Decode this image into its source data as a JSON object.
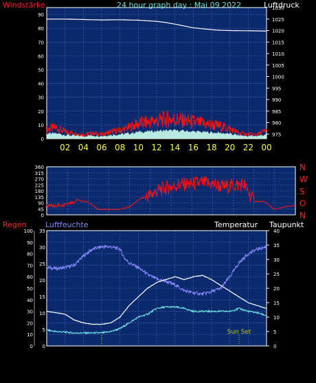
{
  "header": {
    "left_label": "Windstärke",
    "title": "24 hour graph day : Mai 09 2022",
    "right_label": "Luftdruck"
  },
  "panel3_labels": {
    "regen": "Regen",
    "luftfeuchte": "Luftfeuchte",
    "temperatur": "Temperatur",
    "taupunkt": "Taupunkt"
  },
  "colors": {
    "panel_bg": "#0b2a6e",
    "grid": "#4a6fc0",
    "pressure": "#ffffff",
    "wind": "#ff1010",
    "gust_fill": "#ccffee",
    "humidity": "#8a8aff",
    "temperature": "#ffffff",
    "dewpoint": "#70f0f0",
    "sun_marker": "#c8c800",
    "accent_red": "#ff2020"
  },
  "chart_data": [
    {
      "type": "line",
      "title": "24 hour graph day : Mai 09 2022",
      "ylabel": "Windstärke",
      "y2label": "Luftdruck",
      "xlabel": "",
      "x_ticks": [
        "02",
        "04",
        "06",
        "08",
        "10",
        "12",
        "14",
        "16",
        "18",
        "20",
        "22",
        "00"
      ],
      "ylim": [
        0,
        95
      ],
      "y_ticks": [
        0,
        10,
        20,
        30,
        40,
        50,
        60,
        70,
        80,
        90
      ],
      "y2lim": [
        973,
        1030
      ],
      "y2_ticks": [
        975,
        980,
        985,
        990,
        995,
        1000,
        1005,
        1010,
        1015,
        1020,
        1025,
        1030
      ],
      "grid": true,
      "series": [
        {
          "axis": "y2",
          "color": "#ffffff",
          "x": [
            0,
            2,
            4,
            6,
            8,
            10,
            12,
            13,
            14,
            15,
            16,
            17,
            18,
            19,
            20,
            22,
            24
          ],
          "values": [
            1025,
            1025,
            1024.8,
            1024.6,
            1024.7,
            1024.5,
            1024,
            1023.5,
            1022.8,
            1022,
            1021.2,
            1020.8,
            1020.4,
            1020.1,
            1020,
            1019.9,
            1019.8
          ]
        },
        {
          "axis": "y",
          "color": "#ff1010",
          "x": [
            0,
            1,
            2,
            3,
            4,
            5,
            6,
            7,
            8,
            9,
            10,
            11,
            12,
            13,
            14,
            15,
            16,
            17,
            18,
            19,
            20,
            21,
            22,
            23,
            24
          ],
          "values": [
            7,
            8,
            5,
            4,
            3,
            4,
            3,
            5,
            6,
            8,
            11,
            12,
            13,
            14,
            14,
            13,
            12,
            11,
            10,
            9,
            7,
            4,
            3,
            3,
            6
          ]
        }
      ]
    },
    {
      "type": "scatter",
      "ylabel": "",
      "ylim": [
        0,
        360
      ],
      "y_ticks": [
        0,
        45,
        90,
        135,
        180,
        225,
        270,
        315,
        360
      ],
      "right_labels": [
        "N",
        "W",
        "S",
        "O",
        "N"
      ],
      "grid": true,
      "series": [
        {
          "color": "#ff1010",
          "x": [
            0,
            0.5,
            1,
            1.5,
            2,
            2.5,
            3,
            4,
            5,
            6,
            7,
            8,
            8.5,
            9,
            10,
            11,
            12,
            13,
            14,
            15,
            16,
            17,
            18,
            19,
            20,
            21,
            22,
            23,
            24
          ],
          "values": [
            70,
            65,
            70,
            75,
            90,
            95,
            110,
            95,
            40,
            40,
            40,
            60,
            90,
            120,
            150,
            190,
            210,
            230,
            230,
            240,
            230,
            210,
            220,
            230,
            100,
            100,
            40,
            60,
            70
          ]
        }
      ]
    },
    {
      "type": "line",
      "ylabel": "Regen",
      "y2label": "Taupunkt",
      "series_labels": [
        "Luftfeuchte",
        "Temperatur"
      ],
      "ylim": [
        0,
        100
      ],
      "y_ticks": [
        0,
        10,
        20,
        30,
        40,
        50,
        60,
        70,
        80,
        90,
        100
      ],
      "mid_ticks": [
        0,
        5,
        10,
        15,
        20,
        25,
        30,
        35
      ],
      "y2lim": [
        0,
        40
      ],
      "y2_ticks": [
        0,
        5,
        10,
        15,
        20,
        25,
        30,
        35,
        40
      ],
      "annotation": "Sun Set",
      "grid": true,
      "series": [
        {
          "color": "#8a8aff",
          "x": [
            0,
            1,
            2,
            3,
            4,
            5,
            6,
            7,
            8,
            8.5,
            9,
            10,
            11,
            12,
            13,
            14,
            15,
            16,
            17,
            18,
            19,
            19.5,
            20,
            21,
            22,
            23,
            24
          ],
          "values": [
            68,
            67,
            68,
            70,
            78,
            84,
            86,
            86,
            84,
            76,
            72,
            68,
            62,
            58,
            56,
            53,
            48,
            46,
            45,
            47,
            50,
            55,
            60,
            72,
            80,
            84,
            86
          ]
        },
        {
          "color": "#ffffff",
          "x": [
            0,
            1,
            2,
            3,
            4,
            5,
            6,
            7,
            8,
            9,
            10,
            11,
            12,
            13,
            14,
            15,
            16,
            17,
            18,
            19,
            20,
            21,
            22,
            23,
            24
          ],
          "values": [
            12,
            11.5,
            11,
            9,
            8,
            7.5,
            7.5,
            8,
            10,
            14,
            17,
            20,
            22,
            23,
            24,
            23,
            24,
            24.5,
            23,
            21,
            19,
            17,
            15,
            14,
            13
          ]
        },
        {
          "color": "#70f0f0",
          "x": [
            0,
            1,
            2,
            3,
            4,
            5,
            6,
            7,
            8,
            9,
            10,
            11,
            12,
            13,
            14,
            15,
            16,
            17,
            18,
            19,
            20,
            21,
            22,
            23,
            24
          ],
          "values": [
            5.5,
            5,
            4.8,
            4.5,
            4.5,
            4.5,
            4.5,
            5,
            6,
            8,
            10,
            11,
            13,
            13.5,
            13.5,
            13,
            12,
            12,
            12,
            12,
            12,
            13,
            12,
            11.5,
            10.5
          ]
        }
      ]
    }
  ]
}
